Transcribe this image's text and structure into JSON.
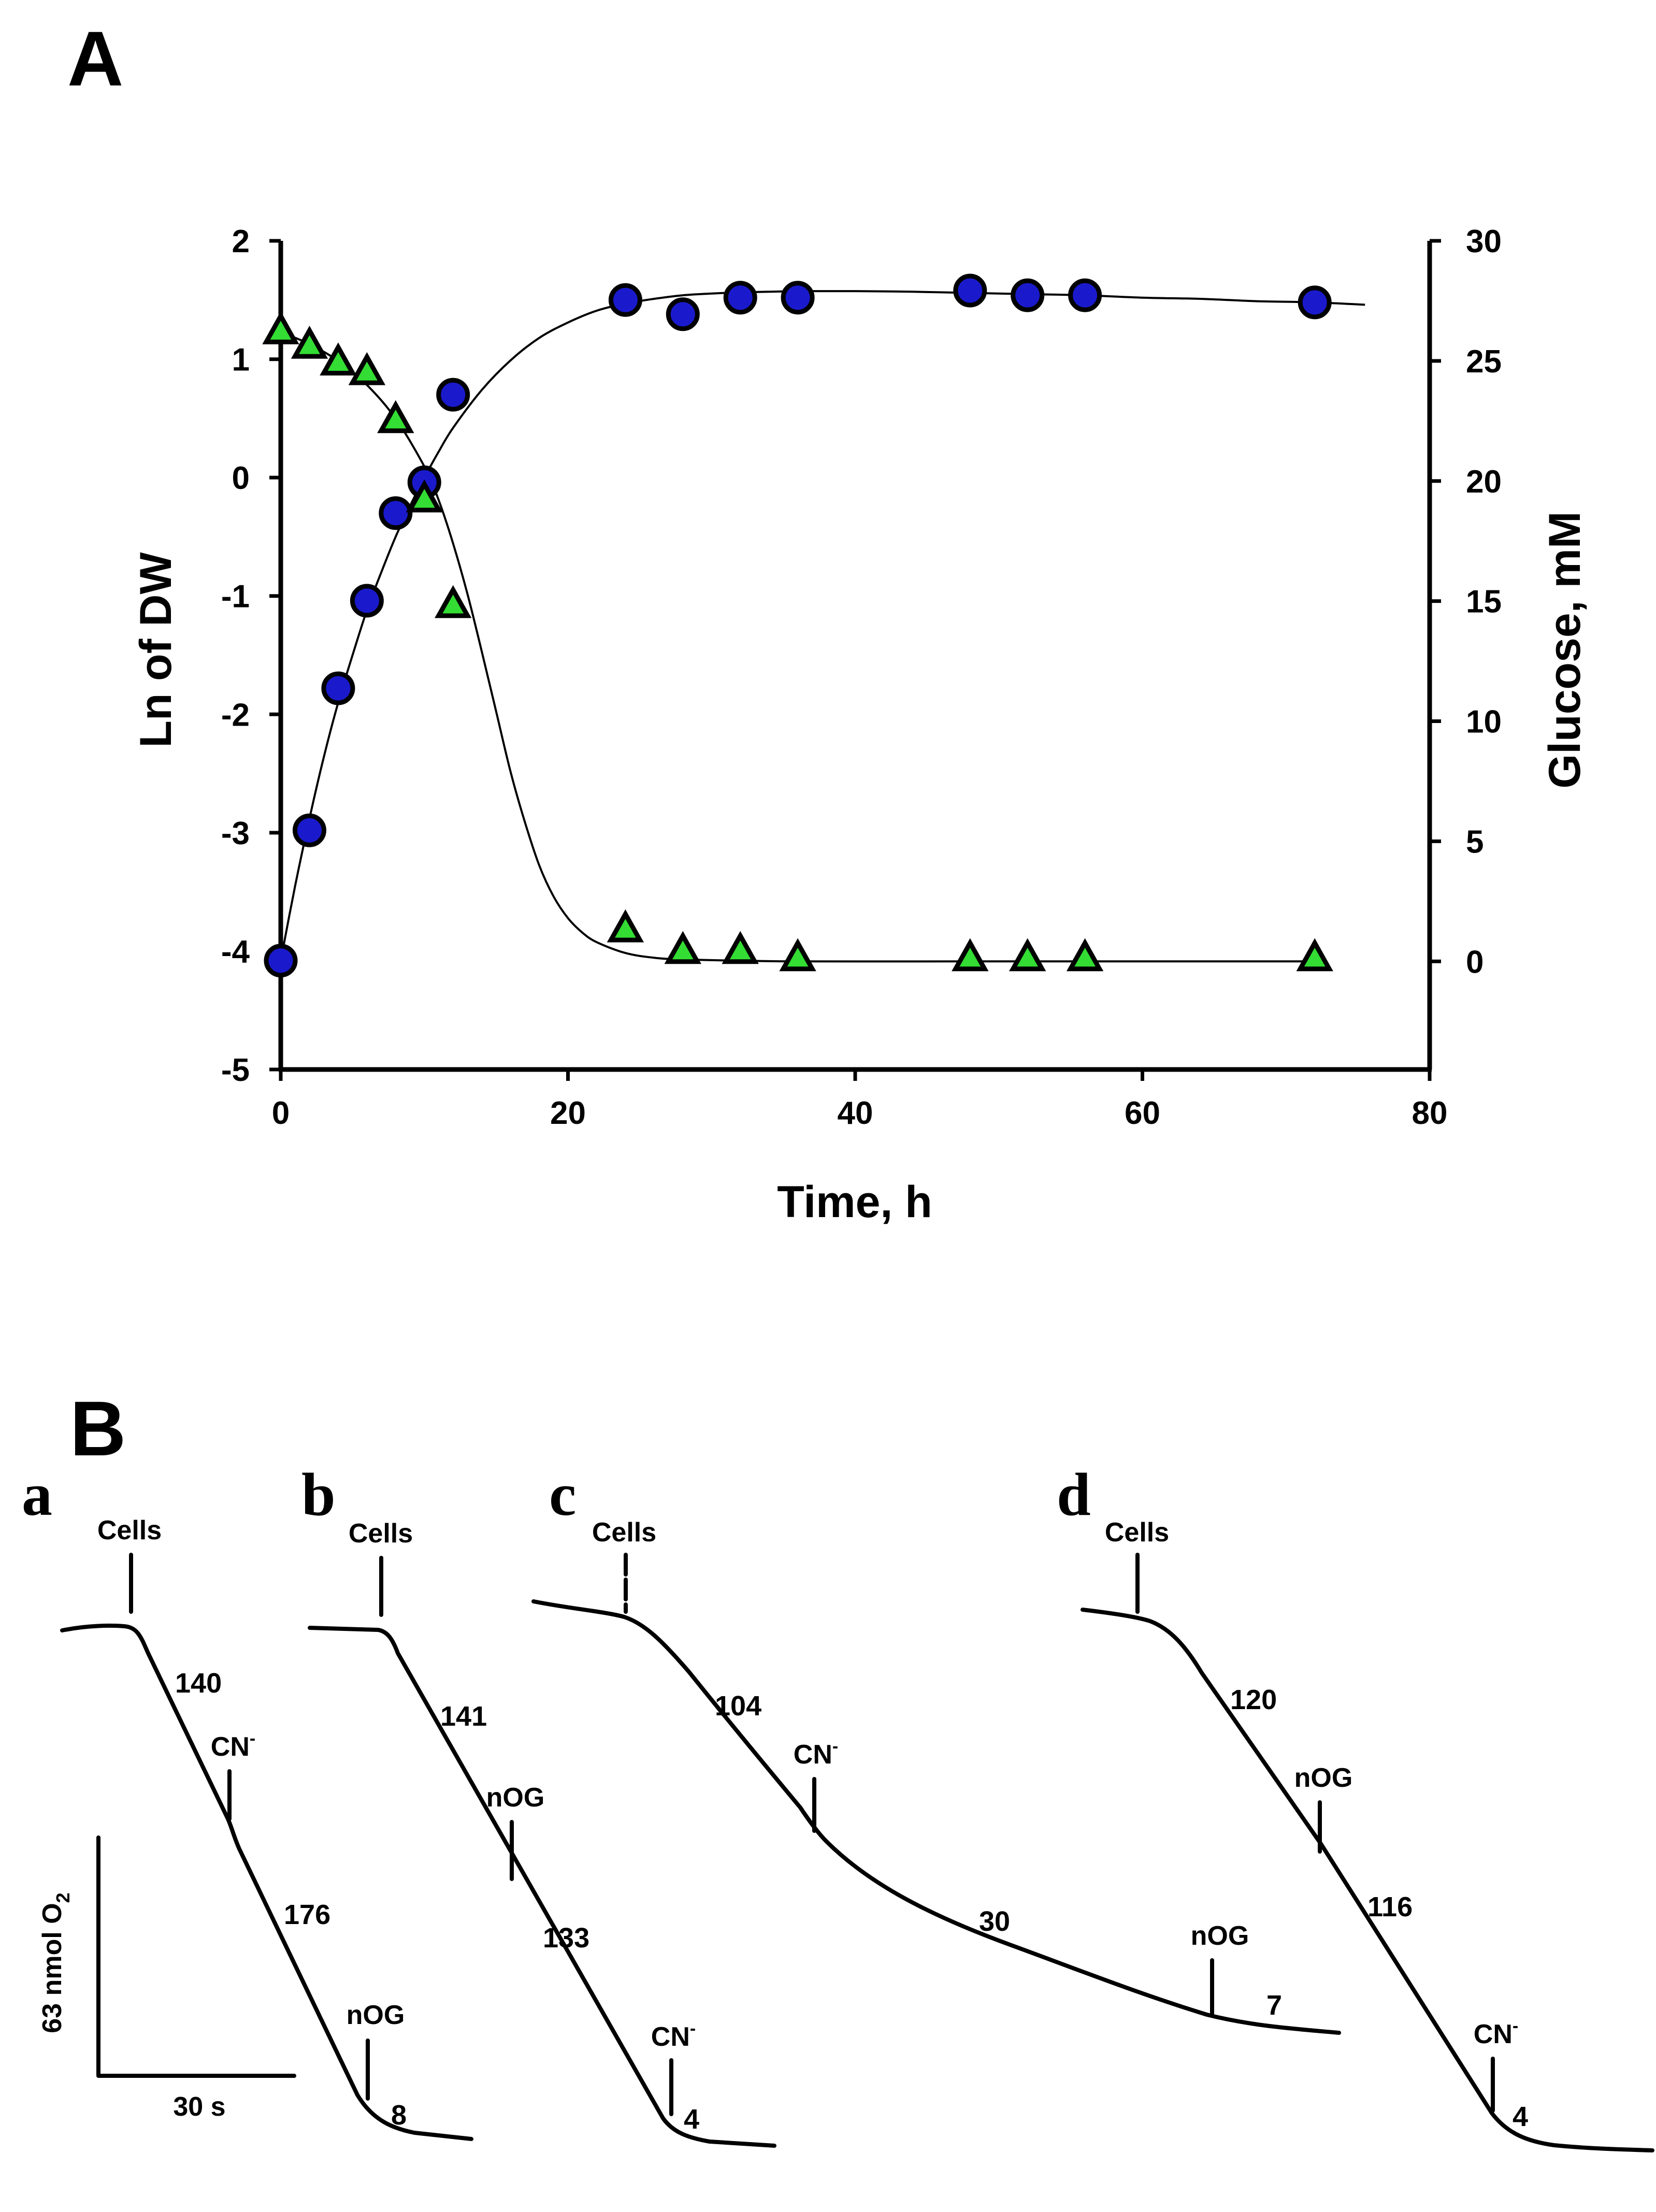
{
  "panel_a": {
    "letter": "A",
    "chart_data": {
      "type": "scatter",
      "xlabel": "Time, h",
      "ylabel_left": "Ln of DW",
      "ylabel_right": "Glucose, mM",
      "xlim": [
        0,
        80
      ],
      "ylim_left": [
        -5,
        2
      ],
      "ylim_right": [
        -4.5,
        30
      ],
      "x_ticks": [
        0,
        20,
        40,
        60,
        80
      ],
      "y_left_ticks": [
        2,
        1,
        0,
        -1,
        -2,
        -3,
        -4,
        -5
      ],
      "y_right_ticks": [
        30,
        25,
        20,
        15,
        10,
        5,
        0
      ],
      "grid": false,
      "series": [
        {
          "name": "Ln of DW",
          "axis": "left",
          "marker": "circle",
          "color": "#1a1acc",
          "x": [
            0,
            2,
            4,
            6,
            8,
            10,
            12,
            24,
            28,
            32,
            36,
            48,
            52,
            56,
            72
          ],
          "y": [
            -4.08,
            -2.98,
            -1.78,
            -1.04,
            -0.3,
            -0.04,
            0.7,
            1.5,
            1.38,
            1.52,
            1.52,
            1.58,
            1.54,
            1.54,
            1.48
          ]
        },
        {
          "name": "Glucose",
          "axis": "right",
          "marker": "triangle",
          "color": "#33dd33",
          "x": [
            0,
            2,
            4,
            6,
            8,
            10,
            12,
            24,
            28,
            32,
            36,
            48,
            52,
            56,
            72
          ],
          "y": [
            26.2,
            25.6,
            24.9,
            24.5,
            22.5,
            19.2,
            14.8,
            1.3,
            0.4,
            0.4,
            0.1,
            0.1,
            0.1,
            0.1,
            0.1
          ]
        }
      ],
      "fit_curves": [
        {
          "series": "Ln of DW",
          "x": [
            0,
            1,
            2,
            3,
            4,
            5,
            6,
            7,
            8,
            9,
            10,
            11,
            12,
            14,
            16,
            18,
            20,
            22,
            24,
            26,
            28,
            30,
            32,
            34,
            36,
            38,
            40,
            44,
            48,
            52,
            56,
            60,
            64,
            68,
            72,
            75.5
          ],
          "y": [
            -4.08,
            -3.45,
            -2.88,
            -2.36,
            -1.9,
            -1.5,
            -1.12,
            -0.8,
            -0.5,
            -0.24,
            0.0,
            0.22,
            0.42,
            0.74,
            0.99,
            1.18,
            1.31,
            1.41,
            1.47,
            1.51,
            1.54,
            1.555,
            1.565,
            1.57,
            1.575,
            1.575,
            1.575,
            1.57,
            1.56,
            1.55,
            1.54,
            1.52,
            1.51,
            1.49,
            1.48,
            1.46
          ]
        },
        {
          "series": "Glucose",
          "x": [
            0,
            2,
            4,
            6,
            8,
            10,
            11,
            12,
            13,
            14,
            15,
            16,
            17,
            18,
            19,
            20,
            21,
            22,
            24,
            26,
            28,
            32,
            36,
            48,
            60,
            72
          ],
          "y": [
            26.2,
            25.7,
            25.0,
            24.0,
            22.6,
            20.6,
            19.2,
            17.4,
            15.3,
            12.9,
            10.4,
            7.9,
            5.8,
            4.0,
            2.7,
            1.8,
            1.2,
            0.8,
            0.35,
            0.15,
            0.08,
            0.03,
            0.0,
            0.0,
            0.0,
            0.0
          ]
        }
      ]
    }
  },
  "panel_b": {
    "letter": "B",
    "scale_bar": {
      "vertical_label": "63 nmol O",
      "vertical_subscript": "2",
      "horizontal_label": "30 s"
    },
    "traces": [
      {
        "letter": "a",
        "markers": [
          {
            "label": "Cells",
            "sup": ""
          },
          {
            "label": "CN",
            "sup": "-"
          },
          {
            "label": "nOG",
            "sup": ""
          }
        ],
        "rates": [
          "140",
          "176",
          "8"
        ]
      },
      {
        "letter": "b",
        "markers": [
          {
            "label": "Cells",
            "sup": ""
          },
          {
            "label": "nOG",
            "sup": ""
          },
          {
            "label": "CN",
            "sup": "-"
          }
        ],
        "rates": [
          "141",
          "133",
          "4"
        ]
      },
      {
        "letter": "c",
        "markers": [
          {
            "label": "Cells",
            "sup": ""
          },
          {
            "label": "CN",
            "sup": "-"
          },
          {
            "label": "nOG",
            "sup": ""
          }
        ],
        "rates": [
          "104",
          "30",
          "7"
        ]
      },
      {
        "letter": "d",
        "markers": [
          {
            "label": "Cells",
            "sup": ""
          },
          {
            "label": "nOG",
            "sup": ""
          },
          {
            "label": "CN",
            "sup": "-"
          }
        ],
        "rates": [
          "120",
          "116",
          "4"
        ]
      }
    ]
  }
}
